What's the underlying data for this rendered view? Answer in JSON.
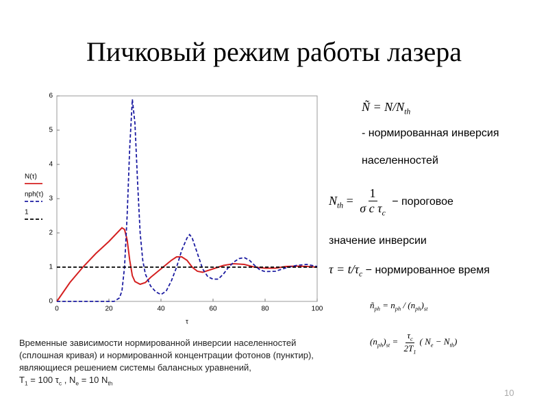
{
  "title": "Пичковый режим работы лазера",
  "chart_data": {
    "type": "line",
    "x_label": "τ",
    "xlim": [
      0,
      100
    ],
    "xticks": [
      0,
      20,
      40,
      60,
      80,
      100
    ],
    "ylim": [
      0,
      6
    ],
    "yticks": [
      0,
      1,
      2,
      3,
      4,
      5,
      6
    ],
    "grid": false,
    "legend": "left",
    "series": [
      {
        "name": "N(τ)",
        "color": "#d42020",
        "line_style": "solid",
        "x": [
          0,
          5,
          10,
          15,
          20,
          25,
          26,
          27,
          28,
          29,
          30,
          32,
          34,
          36,
          40,
          44,
          46,
          48,
          50,
          52,
          54,
          56,
          60,
          64,
          68,
          72,
          76,
          80,
          84,
          88,
          92,
          96,
          100
        ],
        "values": [
          0,
          0.55,
          1.0,
          1.4,
          1.75,
          2.15,
          2.1,
          1.8,
          1.2,
          0.75,
          0.58,
          0.5,
          0.55,
          0.7,
          0.95,
          1.2,
          1.3,
          1.3,
          1.2,
          1.0,
          0.88,
          0.85,
          0.95,
          1.05,
          1.1,
          1.08,
          1.0,
          0.97,
          0.97,
          1.02,
          1.03,
          1.02,
          1.0
        ]
      },
      {
        "name": "nph(τ)",
        "color": "#1a1aa0",
        "line_style": "dashed",
        "x": [
          0,
          20,
          22,
          24,
          25,
          26,
          27,
          28,
          29,
          30,
          31,
          32,
          33,
          34,
          36,
          38,
          40,
          42,
          44,
          46,
          48,
          50,
          51,
          52,
          54,
          56,
          58,
          60,
          62,
          64,
          66,
          68,
          70,
          72,
          74,
          76,
          78,
          80,
          84,
          88,
          92,
          96,
          100
        ],
        "values": [
          0,
          0,
          0,
          0.1,
          0.3,
          1.0,
          2.5,
          4.5,
          5.9,
          5.2,
          3.5,
          2.0,
          1.2,
          0.8,
          0.45,
          0.28,
          0.2,
          0.3,
          0.6,
          1.0,
          1.5,
          1.85,
          1.95,
          1.85,
          1.4,
          0.95,
          0.72,
          0.65,
          0.65,
          0.8,
          1.0,
          1.15,
          1.25,
          1.28,
          1.2,
          1.05,
          0.92,
          0.87,
          0.88,
          0.98,
          1.05,
          1.08,
          1.02
        ]
      },
      {
        "name": "1",
        "color": "#000000",
        "line_style": "dashed",
        "x": [
          0,
          100
        ],
        "values": [
          1,
          1
        ]
      }
    ]
  },
  "definitions": {
    "f1": [
      "Ñ = N/N",
      "th"
    ],
    "f1_text": [
      "- нормированная инверсия",
      "населенностей"
    ],
    "f2": [
      "N",
      "th",
      " = ",
      "1",
      "σ c τ",
      "c",
      " − пороговое"
    ],
    "f2_text": "значение инверсии",
    "f3": [
      "τ = t/τ",
      "c",
      " − нормированное время"
    ],
    "f4": [
      "ñ",
      "ph",
      " = n",
      "ph",
      " / (n",
      "ph",
      ")",
      "st"
    ],
    "f5": [
      "(n",
      "ph",
      ")",
      "st",
      " = ",
      "τ",
      "c",
      "2T",
      "1",
      "( N",
      "e",
      " − N",
      "th",
      ")"
    ]
  },
  "caption": [
    "Временные зависимости нормированной инверсии населенностей",
    "(сплошная кривая) и нормированной концентрации фотонов (пунктир),",
    "являющиеся решением системы балансных уравнений,",
    [
      "T",
      "1",
      " = 100 τ",
      "c",
      " , N",
      "e",
      " = 10 N",
      "th"
    ]
  ],
  "page_number": "10"
}
